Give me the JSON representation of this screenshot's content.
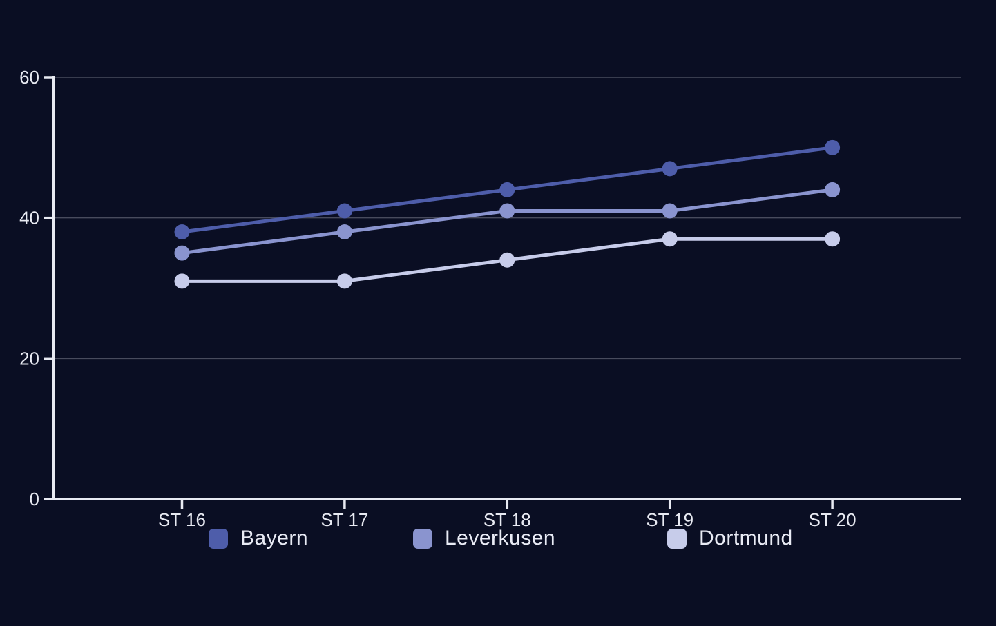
{
  "chart_data": {
    "type": "line",
    "title": "",
    "xlabel": "",
    "ylabel": "",
    "categories": [
      "ST 16",
      "ST 17",
      "ST 18",
      "ST 19",
      "ST 20"
    ],
    "series": [
      {
        "name": "Bayern",
        "color": "#4E5DAA",
        "values": [
          38,
          41,
          44,
          47,
          50
        ]
      },
      {
        "name": "Leverkusen",
        "color": "#8A94CF",
        "values": [
          35,
          38,
          41,
          41,
          44
        ]
      },
      {
        "name": "Dortmund",
        "color": "#C7CCEA",
        "values": [
          31,
          31,
          34,
          37,
          37
        ]
      }
    ],
    "ylim": [
      0,
      60
    ],
    "y_ticks": [
      0,
      20,
      40,
      60
    ],
    "grid": true,
    "legend_position": "bottom",
    "marker": "circle"
  },
  "colors": {
    "background": "#0A0E23",
    "axis": "#E8EAF2",
    "gridline": "rgba(233,235,245,0.28)",
    "tick_label": "#E8EAF2",
    "legend_text": "#E9EBF5"
  }
}
